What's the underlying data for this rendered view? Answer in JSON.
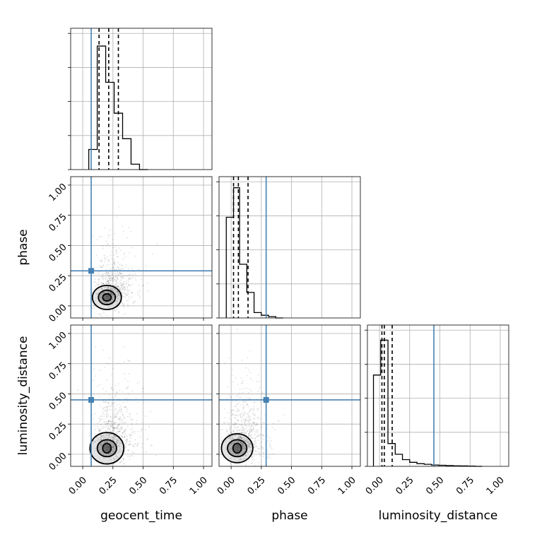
{
  "chart_data": {
    "type": "corner",
    "parameters": [
      "geocent_time",
      "phase",
      "luminosity_distance"
    ],
    "axis_range": [
      -0.1,
      1.07
    ],
    "tick_values": [
      0.0,
      0.25,
      0.5,
      0.75,
      1.0
    ],
    "tick_labels": [
      "0.00",
      "0.25",
      "0.50",
      "0.75",
      "1.00"
    ],
    "grid": true,
    "truth_color": "#4682b4",
    "truths": {
      "geocent_time": 0.07,
      "phase": 0.29,
      "luminosity_distance": 0.45
    },
    "histograms": {
      "geocent_time": {
        "bin_edges": [
          0.05,
          0.12,
          0.19,
          0.26,
          0.33,
          0.4,
          0.47,
          0.54
        ],
        "counts": [
          0.15,
          0.92,
          0.65,
          0.42,
          0.23,
          0.04,
          0.0
        ],
        "quantiles": [
          0.135,
          0.215,
          0.295
        ]
      },
      "phase": {
        "bin_edges": [
          -0.04,
          0.02,
          0.07,
          0.13,
          0.19,
          0.25,
          0.31,
          0.37,
          0.43
        ],
        "counts": [
          0.75,
          0.97,
          0.4,
          0.19,
          0.04,
          0.02,
          0.01,
          0.0
        ],
        "quantiles": [
          0.02,
          0.06,
          0.14
        ]
      },
      "luminosity_distance": {
        "bin_edges": [
          -0.05,
          0.01,
          0.07,
          0.13,
          0.19,
          0.25,
          0.31,
          0.37,
          0.43,
          0.49,
          0.55,
          0.61,
          0.67,
          0.73,
          0.79,
          0.85
        ],
        "counts": [
          0.68,
          0.94,
          0.17,
          0.09,
          0.05,
          0.03,
          0.02,
          0.015,
          0.01,
          0.008,
          0.006,
          0.004,
          0.003,
          0.002,
          0.0
        ],
        "quantiles": [
          0.02,
          0.04,
          0.105
        ]
      }
    },
    "scatter_panels": [
      {
        "x_param": "geocent_time",
        "y_param": "phase",
        "center": [
          0.2,
          0.07
        ],
        "contours": [
          {
            "spread": [
              0.035,
              0.03
            ],
            "shade": "#333333"
          },
          {
            "spread": [
              0.07,
              0.06
            ],
            "shade": "#808080"
          },
          {
            "spread": [
              0.12,
              0.1
            ],
            "shade": "#cccccc"
          }
        ]
      },
      {
        "x_param": "geocent_time",
        "y_param": "luminosity_distance",
        "center": [
          0.2,
          0.05
        ],
        "contours": [
          {
            "spread": [
              0.035,
              0.04
            ],
            "shade": "#333333"
          },
          {
            "spread": [
              0.08,
              0.07
            ],
            "shade": "#808080"
          },
          {
            "spread": [
              0.14,
              0.13
            ],
            "shade": "#cccccc"
          }
        ]
      },
      {
        "x_param": "phase",
        "y_param": "luminosity_distance",
        "center": [
          0.05,
          0.05
        ],
        "contours": [
          {
            "spread": [
              0.035,
              0.04
            ],
            "shade": "#333333"
          },
          {
            "spread": [
              0.08,
              0.07
            ],
            "shade": "#808080"
          },
          {
            "spread": [
              0.13,
              0.12
            ],
            "shade": "#cccccc"
          }
        ]
      }
    ]
  }
}
